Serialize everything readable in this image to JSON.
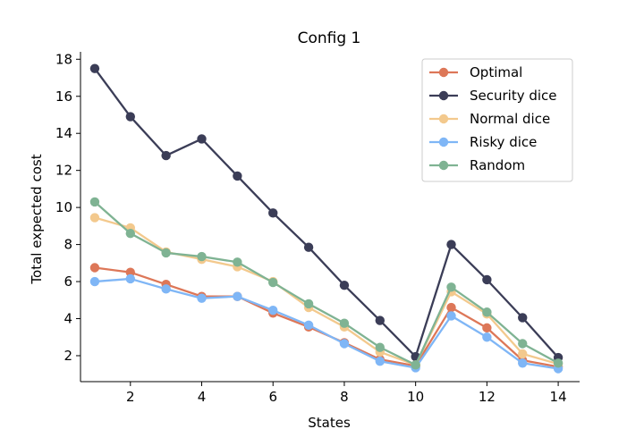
{
  "chart_data": {
    "type": "line",
    "title": "Config 1",
    "xlabel": "States",
    "ylabel": "Total expected cost",
    "xlim": [
      0.6,
      14.6
    ],
    "ylim": [
      0.6,
      18.4
    ],
    "xticks": [
      2,
      4,
      6,
      8,
      10,
      12,
      14
    ],
    "yticks": [
      2,
      4,
      6,
      8,
      10,
      12,
      14,
      16,
      18
    ],
    "grid": false,
    "legend_position": "top-right",
    "x": [
      1,
      2,
      3,
      4,
      5,
      6,
      7,
      8,
      9,
      10,
      11,
      12,
      13,
      14
    ],
    "series": [
      {
        "name": "Optimal",
        "color": "#dd7758",
        "values": [
          6.75,
          6.5,
          5.85,
          5.2,
          5.2,
          4.3,
          3.55,
          2.7,
          1.8,
          1.45,
          4.6,
          3.5,
          1.75,
          1.4
        ]
      },
      {
        "name": "Security dice",
        "color": "#3b3d57",
        "values": [
          17.5,
          14.9,
          12.8,
          13.7,
          11.7,
          9.7,
          7.85,
          5.8,
          3.9,
          1.95,
          8.0,
          6.1,
          4.05,
          1.9
        ]
      },
      {
        "name": "Normal dice",
        "color": "#f3c98d",
        "values": [
          9.45,
          8.9,
          7.6,
          7.2,
          6.8,
          6.0,
          4.6,
          3.55,
          2.2,
          1.5,
          5.45,
          4.25,
          2.1,
          1.55
        ]
      },
      {
        "name": "Risky dice",
        "color": "#7fb6f6",
        "values": [
          6.0,
          6.15,
          5.6,
          5.1,
          5.2,
          4.45,
          3.65,
          2.65,
          1.7,
          1.35,
          4.15,
          3.0,
          1.6,
          1.3
        ]
      },
      {
        "name": "Random",
        "color": "#7fb393",
        "values": [
          10.3,
          8.6,
          7.55,
          7.35,
          7.05,
          5.95,
          4.8,
          3.75,
          2.45,
          1.5,
          5.7,
          4.35,
          2.65,
          1.6
        ]
      }
    ]
  }
}
